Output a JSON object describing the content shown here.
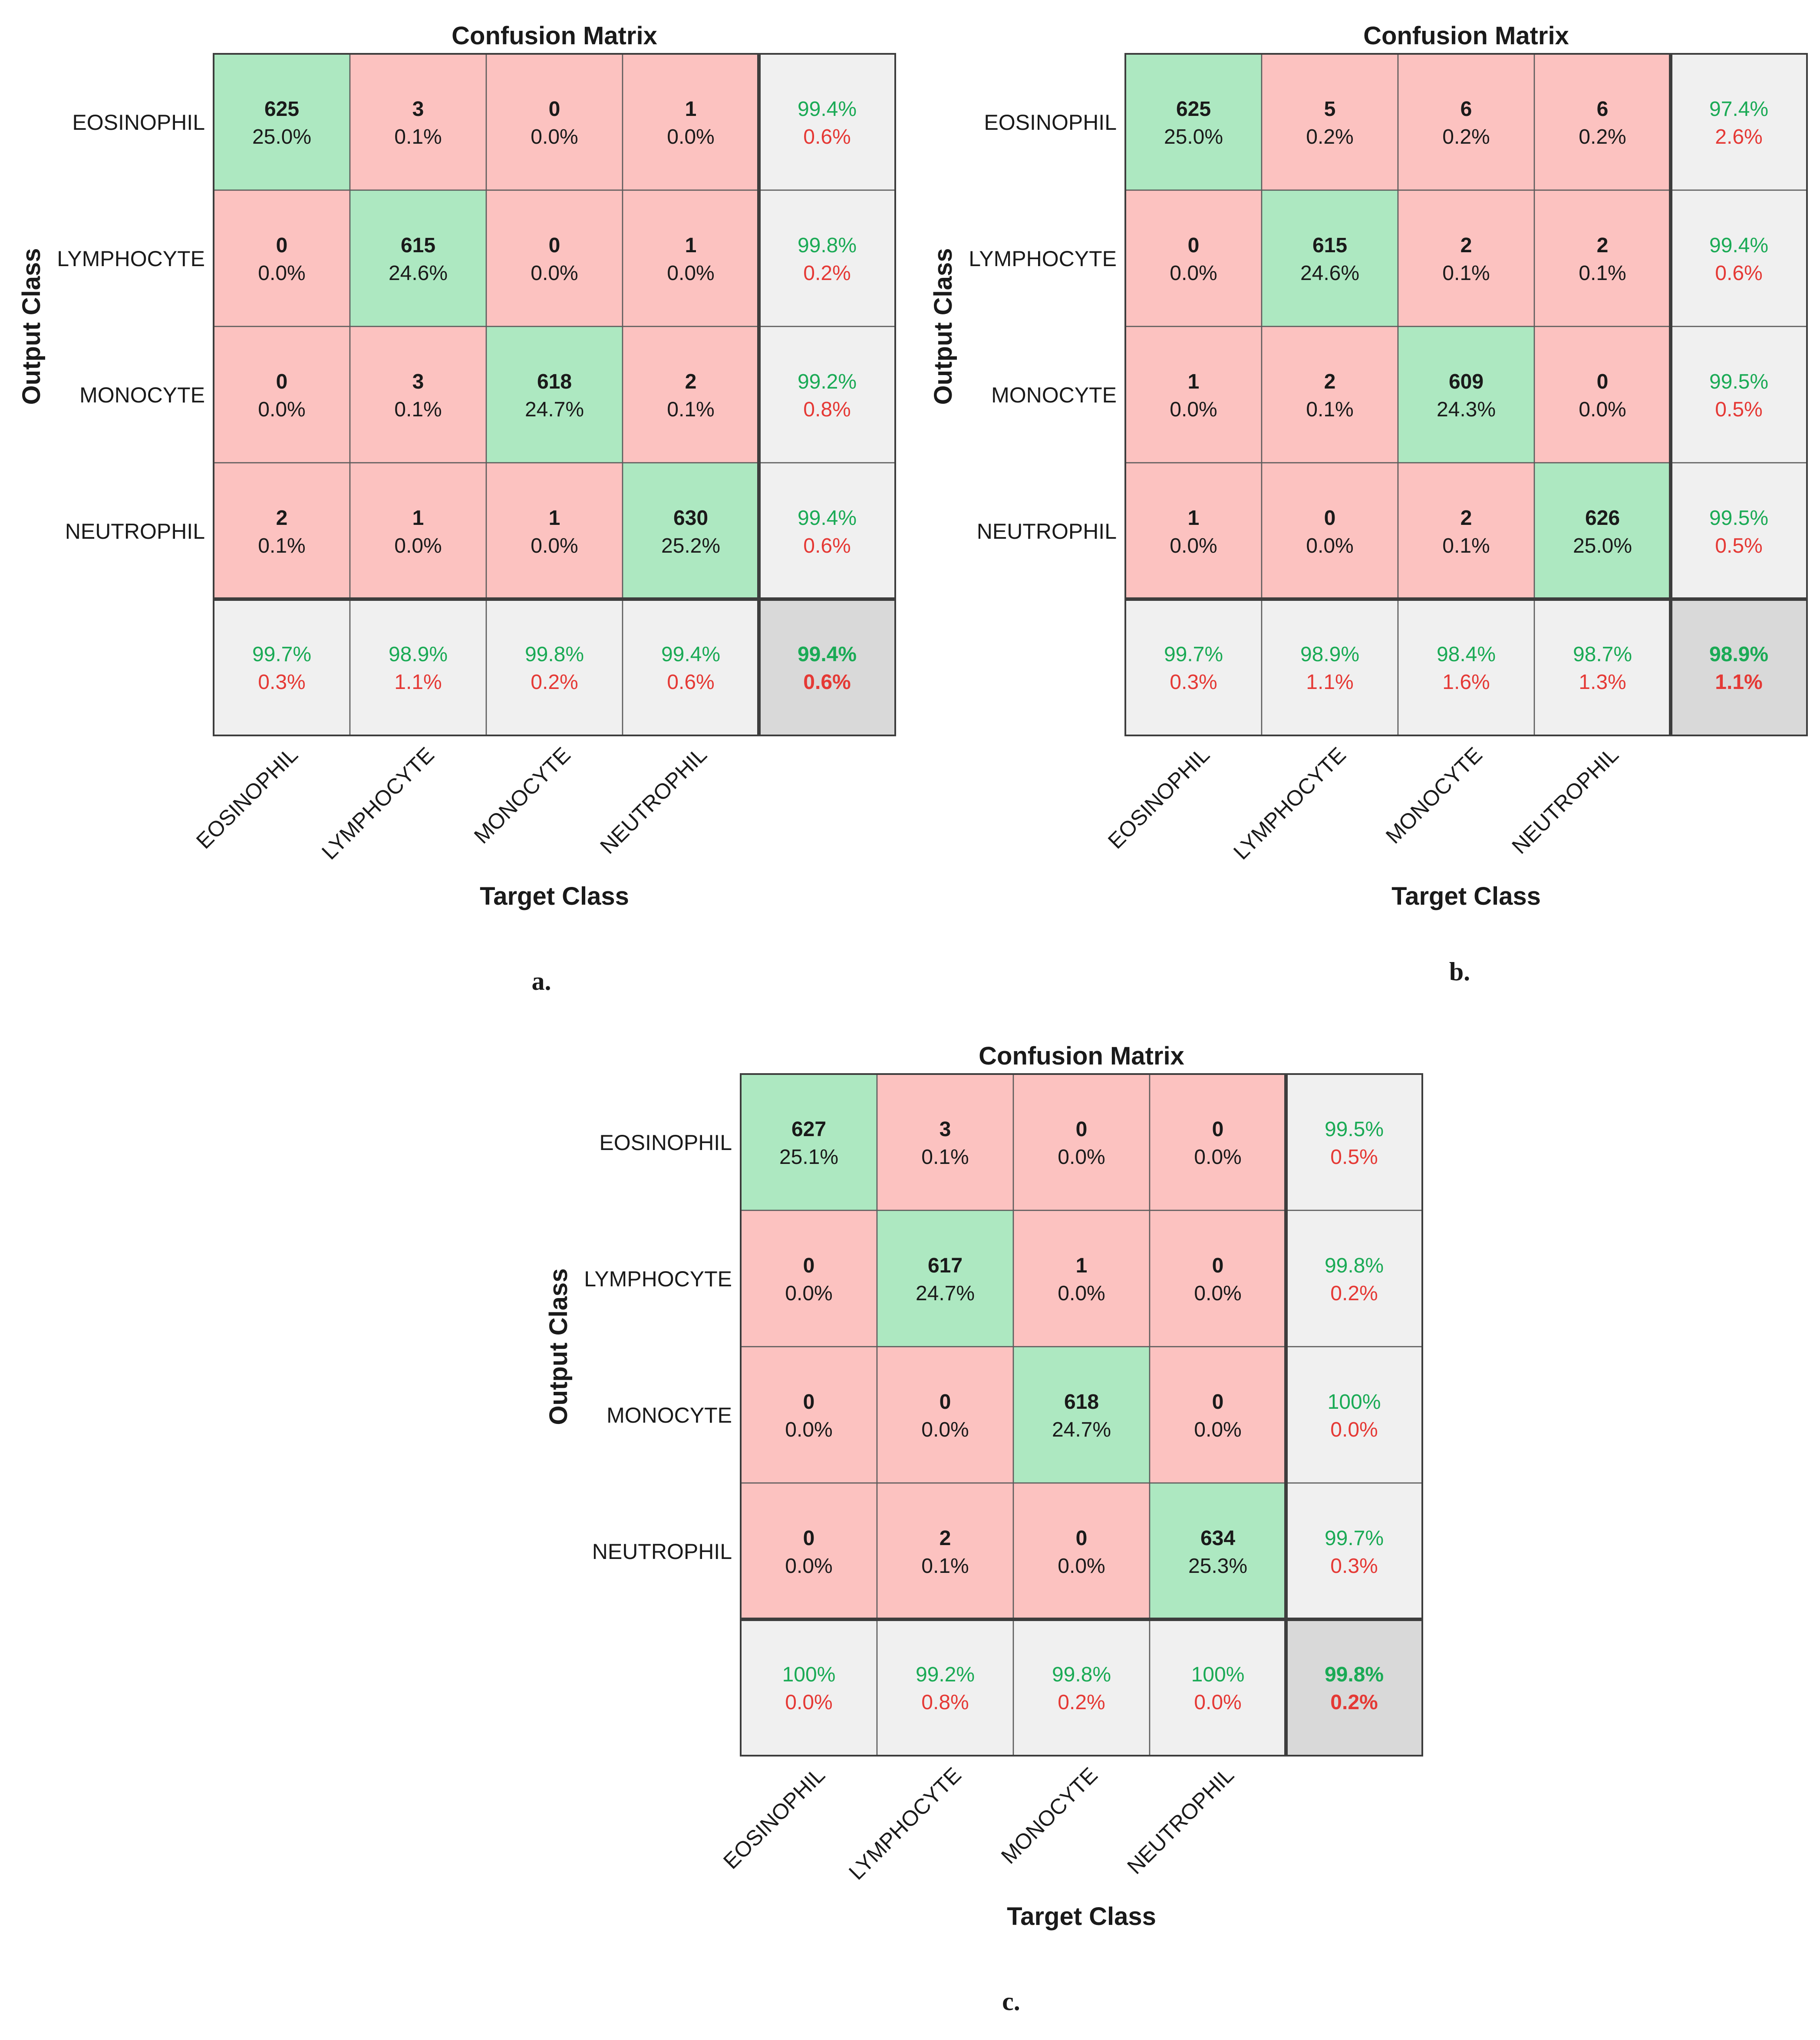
{
  "figures": [
    {
      "panel_label": "a.",
      "title": "Confusion Matrix",
      "xlabel": "Target Class",
      "ylabel": "Output Class",
      "classes": [
        "EOSINOPHIL",
        "LYMPHOCYTE",
        "MONOCYTE",
        "NEUTROPHIL"
      ],
      "cells": [
        [
          {
            "count": "625",
            "pct": "25.0%"
          },
          {
            "count": "3",
            "pct": "0.1%"
          },
          {
            "count": "0",
            "pct": "0.0%"
          },
          {
            "count": "1",
            "pct": "0.0%"
          }
        ],
        [
          {
            "count": "0",
            "pct": "0.0%"
          },
          {
            "count": "615",
            "pct": "24.6%"
          },
          {
            "count": "0",
            "pct": "0.0%"
          },
          {
            "count": "1",
            "pct": "0.0%"
          }
        ],
        [
          {
            "count": "0",
            "pct": "0.0%"
          },
          {
            "count": "3",
            "pct": "0.1%"
          },
          {
            "count": "618",
            "pct": "24.7%"
          },
          {
            "count": "2",
            "pct": "0.1%"
          }
        ],
        [
          {
            "count": "2",
            "pct": "0.1%"
          },
          {
            "count": "1",
            "pct": "0.0%"
          },
          {
            "count": "1",
            "pct": "0.0%"
          },
          {
            "count": "630",
            "pct": "25.2%"
          }
        ]
      ],
      "row_summary": [
        {
          "correct": "99.4%",
          "error": "0.6%"
        },
        {
          "correct": "99.8%",
          "error": "0.2%"
        },
        {
          "correct": "99.2%",
          "error": "0.8%"
        },
        {
          "correct": "99.4%",
          "error": "0.6%"
        }
      ],
      "col_summary": [
        {
          "correct": "99.7%",
          "error": "0.3%"
        },
        {
          "correct": "98.9%",
          "error": "1.1%"
        },
        {
          "correct": "99.8%",
          "error": "0.2%"
        },
        {
          "correct": "99.4%",
          "error": "0.6%"
        }
      ],
      "overall": {
        "correct": "99.4%",
        "error": "0.6%"
      }
    },
    {
      "panel_label": "b.",
      "title": "Confusion Matrix",
      "xlabel": "Target Class",
      "ylabel": "Output Class",
      "classes": [
        "EOSINOPHIL",
        "LYMPHOCYTE",
        "MONOCYTE",
        "NEUTROPHIL"
      ],
      "cells": [
        [
          {
            "count": "625",
            "pct": "25.0%"
          },
          {
            "count": "5",
            "pct": "0.2%"
          },
          {
            "count": "6",
            "pct": "0.2%"
          },
          {
            "count": "6",
            "pct": "0.2%"
          }
        ],
        [
          {
            "count": "0",
            "pct": "0.0%"
          },
          {
            "count": "615",
            "pct": "24.6%"
          },
          {
            "count": "2",
            "pct": "0.1%"
          },
          {
            "count": "2",
            "pct": "0.1%"
          }
        ],
        [
          {
            "count": "1",
            "pct": "0.0%"
          },
          {
            "count": "2",
            "pct": "0.1%"
          },
          {
            "count": "609",
            "pct": "24.3%"
          },
          {
            "count": "0",
            "pct": "0.0%"
          }
        ],
        [
          {
            "count": "1",
            "pct": "0.0%"
          },
          {
            "count": "0",
            "pct": "0.0%"
          },
          {
            "count": "2",
            "pct": "0.1%"
          },
          {
            "count": "626",
            "pct": "25.0%"
          }
        ]
      ],
      "row_summary": [
        {
          "correct": "97.4%",
          "error": "2.6%"
        },
        {
          "correct": "99.4%",
          "error": "0.6%"
        },
        {
          "correct": "99.5%",
          "error": "0.5%"
        },
        {
          "correct": "99.5%",
          "error": "0.5%"
        }
      ],
      "col_summary": [
        {
          "correct": "99.7%",
          "error": "0.3%"
        },
        {
          "correct": "98.9%",
          "error": "1.1%"
        },
        {
          "correct": "98.4%",
          "error": "1.6%"
        },
        {
          "correct": "98.7%",
          "error": "1.3%"
        }
      ],
      "overall": {
        "correct": "98.9%",
        "error": "1.1%"
      }
    },
    {
      "panel_label": "c.",
      "title": "Confusion Matrix",
      "xlabel": "Target Class",
      "ylabel": "Output Class",
      "classes": [
        "EOSINOPHIL",
        "LYMPHOCYTE",
        "MONOCYTE",
        "NEUTROPHIL"
      ],
      "cells": [
        [
          {
            "count": "627",
            "pct": "25.1%"
          },
          {
            "count": "3",
            "pct": "0.1%"
          },
          {
            "count": "0",
            "pct": "0.0%"
          },
          {
            "count": "0",
            "pct": "0.0%"
          }
        ],
        [
          {
            "count": "0",
            "pct": "0.0%"
          },
          {
            "count": "617",
            "pct": "24.7%"
          },
          {
            "count": "1",
            "pct": "0.0%"
          },
          {
            "count": "0",
            "pct": "0.0%"
          }
        ],
        [
          {
            "count": "0",
            "pct": "0.0%"
          },
          {
            "count": "0",
            "pct": "0.0%"
          },
          {
            "count": "618",
            "pct": "24.7%"
          },
          {
            "count": "0",
            "pct": "0.0%"
          }
        ],
        [
          {
            "count": "0",
            "pct": "0.0%"
          },
          {
            "count": "2",
            "pct": "0.1%"
          },
          {
            "count": "0",
            "pct": "0.0%"
          },
          {
            "count": "634",
            "pct": "25.3%"
          }
        ]
      ],
      "row_summary": [
        {
          "correct": "99.5%",
          "error": "0.5%"
        },
        {
          "correct": "99.8%",
          "error": "0.2%"
        },
        {
          "correct": "100%",
          "error": "0.0%"
        },
        {
          "correct": "99.7%",
          "error": "0.3%"
        }
      ],
      "col_summary": [
        {
          "correct": "100%",
          "error": "0.0%"
        },
        {
          "correct": "99.2%",
          "error": "0.8%"
        },
        {
          "correct": "99.8%",
          "error": "0.2%"
        },
        {
          "correct": "100%",
          "error": "0.0%"
        }
      ],
      "overall": {
        "correct": "99.8%",
        "error": "0.2%"
      }
    }
  ],
  "colors": {
    "correct_cell": "#ade8c1",
    "error_cell": "#fcc2c0",
    "summary_cell": "#f0f0f0",
    "overall_cell": "#d9d9d9",
    "correct_text": "#1aaa55",
    "error_text": "#e53935",
    "grid_line": "#3d3d3d",
    "text": "#1a1a1a"
  },
  "chart_data": [
    {
      "type": "heatmap",
      "title": "Confusion Matrix",
      "panel": "a.",
      "xlabel": "Target Class",
      "ylabel": "Output Class",
      "categories": [
        "EOSINOPHIL",
        "LYMPHOCYTE",
        "MONOCYTE",
        "NEUTROPHIL"
      ],
      "matrix": [
        [
          625,
          3,
          0,
          1
        ],
        [
          0,
          615,
          0,
          1
        ],
        [
          0,
          3,
          618,
          2
        ],
        [
          2,
          1,
          1,
          630
        ]
      ],
      "overall_accuracy": 99.4
    },
    {
      "type": "heatmap",
      "title": "Confusion Matrix",
      "panel": "b.",
      "xlabel": "Target Class",
      "ylabel": "Output Class",
      "categories": [
        "EOSINOPHIL",
        "LYMPHOCYTE",
        "MONOCYTE",
        "NEUTROPHIL"
      ],
      "matrix": [
        [
          625,
          5,
          6,
          6
        ],
        [
          0,
          615,
          2,
          2
        ],
        [
          1,
          2,
          609,
          0
        ],
        [
          1,
          0,
          2,
          626
        ]
      ],
      "overall_accuracy": 98.9
    },
    {
      "type": "heatmap",
      "title": "Confusion Matrix",
      "panel": "c.",
      "xlabel": "Target Class",
      "ylabel": "Output Class",
      "categories": [
        "EOSINOPHIL",
        "LYMPHOCYTE",
        "MONOCYTE",
        "NEUTROPHIL"
      ],
      "matrix": [
        [
          627,
          3,
          0,
          0
        ],
        [
          0,
          617,
          1,
          0
        ],
        [
          0,
          0,
          618,
          0
        ],
        [
          0,
          2,
          0,
          634
        ]
      ],
      "overall_accuracy": 99.8
    }
  ]
}
